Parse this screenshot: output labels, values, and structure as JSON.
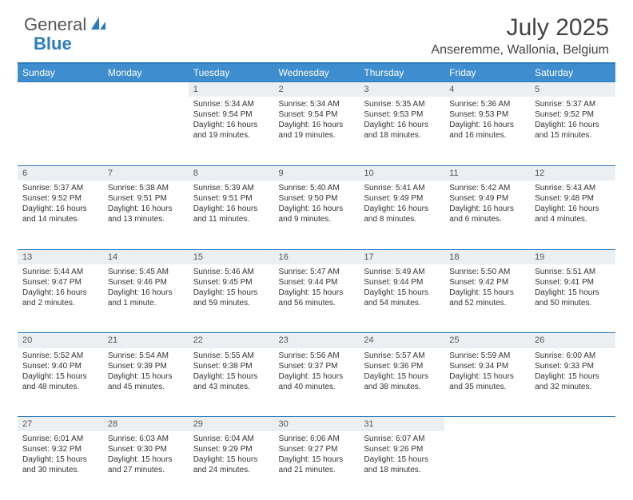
{
  "brand": {
    "part1": "General",
    "part2": "Blue"
  },
  "title": "July 2025",
  "location": "Anseremme, Wallonia, Belgium",
  "colors": {
    "header_bg": "#3d8dcf",
    "rule": "#2b7bbf",
    "daynum_bg": "#eceff2",
    "text": "#333333"
  },
  "weekdays": [
    "Sunday",
    "Monday",
    "Tuesday",
    "Wednesday",
    "Thursday",
    "Friday",
    "Saturday"
  ],
  "weeks": [
    [
      null,
      null,
      {
        "n": "1",
        "sr": "Sunrise: 5:34 AM",
        "ss": "Sunset: 9:54 PM",
        "dl1": "Daylight: 16 hours",
        "dl2": "and 19 minutes."
      },
      {
        "n": "2",
        "sr": "Sunrise: 5:34 AM",
        "ss": "Sunset: 9:54 PM",
        "dl1": "Daylight: 16 hours",
        "dl2": "and 19 minutes."
      },
      {
        "n": "3",
        "sr": "Sunrise: 5:35 AM",
        "ss": "Sunset: 9:53 PM",
        "dl1": "Daylight: 16 hours",
        "dl2": "and 18 minutes."
      },
      {
        "n": "4",
        "sr": "Sunrise: 5:36 AM",
        "ss": "Sunset: 9:53 PM",
        "dl1": "Daylight: 16 hours",
        "dl2": "and 16 minutes."
      },
      {
        "n": "5",
        "sr": "Sunrise: 5:37 AM",
        "ss": "Sunset: 9:52 PM",
        "dl1": "Daylight: 16 hours",
        "dl2": "and 15 minutes."
      }
    ],
    [
      {
        "n": "6",
        "sr": "Sunrise: 5:37 AM",
        "ss": "Sunset: 9:52 PM",
        "dl1": "Daylight: 16 hours",
        "dl2": "and 14 minutes."
      },
      {
        "n": "7",
        "sr": "Sunrise: 5:38 AM",
        "ss": "Sunset: 9:51 PM",
        "dl1": "Daylight: 16 hours",
        "dl2": "and 13 minutes."
      },
      {
        "n": "8",
        "sr": "Sunrise: 5:39 AM",
        "ss": "Sunset: 9:51 PM",
        "dl1": "Daylight: 16 hours",
        "dl2": "and 11 minutes."
      },
      {
        "n": "9",
        "sr": "Sunrise: 5:40 AM",
        "ss": "Sunset: 9:50 PM",
        "dl1": "Daylight: 16 hours",
        "dl2": "and 9 minutes."
      },
      {
        "n": "10",
        "sr": "Sunrise: 5:41 AM",
        "ss": "Sunset: 9:49 PM",
        "dl1": "Daylight: 16 hours",
        "dl2": "and 8 minutes."
      },
      {
        "n": "11",
        "sr": "Sunrise: 5:42 AM",
        "ss": "Sunset: 9:49 PM",
        "dl1": "Daylight: 16 hours",
        "dl2": "and 6 minutes."
      },
      {
        "n": "12",
        "sr": "Sunrise: 5:43 AM",
        "ss": "Sunset: 9:48 PM",
        "dl1": "Daylight: 16 hours",
        "dl2": "and 4 minutes."
      }
    ],
    [
      {
        "n": "13",
        "sr": "Sunrise: 5:44 AM",
        "ss": "Sunset: 9:47 PM",
        "dl1": "Daylight: 16 hours",
        "dl2": "and 2 minutes."
      },
      {
        "n": "14",
        "sr": "Sunrise: 5:45 AM",
        "ss": "Sunset: 9:46 PM",
        "dl1": "Daylight: 16 hours",
        "dl2": "and 1 minute."
      },
      {
        "n": "15",
        "sr": "Sunrise: 5:46 AM",
        "ss": "Sunset: 9:45 PM",
        "dl1": "Daylight: 15 hours",
        "dl2": "and 59 minutes."
      },
      {
        "n": "16",
        "sr": "Sunrise: 5:47 AM",
        "ss": "Sunset: 9:44 PM",
        "dl1": "Daylight: 15 hours",
        "dl2": "and 56 minutes."
      },
      {
        "n": "17",
        "sr": "Sunrise: 5:49 AM",
        "ss": "Sunset: 9:44 PM",
        "dl1": "Daylight: 15 hours",
        "dl2": "and 54 minutes."
      },
      {
        "n": "18",
        "sr": "Sunrise: 5:50 AM",
        "ss": "Sunset: 9:42 PM",
        "dl1": "Daylight: 15 hours",
        "dl2": "and 52 minutes."
      },
      {
        "n": "19",
        "sr": "Sunrise: 5:51 AM",
        "ss": "Sunset: 9:41 PM",
        "dl1": "Daylight: 15 hours",
        "dl2": "and 50 minutes."
      }
    ],
    [
      {
        "n": "20",
        "sr": "Sunrise: 5:52 AM",
        "ss": "Sunset: 9:40 PM",
        "dl1": "Daylight: 15 hours",
        "dl2": "and 48 minutes."
      },
      {
        "n": "21",
        "sr": "Sunrise: 5:54 AM",
        "ss": "Sunset: 9:39 PM",
        "dl1": "Daylight: 15 hours",
        "dl2": "and 45 minutes."
      },
      {
        "n": "22",
        "sr": "Sunrise: 5:55 AM",
        "ss": "Sunset: 9:38 PM",
        "dl1": "Daylight: 15 hours",
        "dl2": "and 43 minutes."
      },
      {
        "n": "23",
        "sr": "Sunrise: 5:56 AM",
        "ss": "Sunset: 9:37 PM",
        "dl1": "Daylight: 15 hours",
        "dl2": "and 40 minutes."
      },
      {
        "n": "24",
        "sr": "Sunrise: 5:57 AM",
        "ss": "Sunset: 9:36 PM",
        "dl1": "Daylight: 15 hours",
        "dl2": "and 38 minutes."
      },
      {
        "n": "25",
        "sr": "Sunrise: 5:59 AM",
        "ss": "Sunset: 9:34 PM",
        "dl1": "Daylight: 15 hours",
        "dl2": "and 35 minutes."
      },
      {
        "n": "26",
        "sr": "Sunrise: 6:00 AM",
        "ss": "Sunset: 9:33 PM",
        "dl1": "Daylight: 15 hours",
        "dl2": "and 32 minutes."
      }
    ],
    [
      {
        "n": "27",
        "sr": "Sunrise: 6:01 AM",
        "ss": "Sunset: 9:32 PM",
        "dl1": "Daylight: 15 hours",
        "dl2": "and 30 minutes."
      },
      {
        "n": "28",
        "sr": "Sunrise: 6:03 AM",
        "ss": "Sunset: 9:30 PM",
        "dl1": "Daylight: 15 hours",
        "dl2": "and 27 minutes."
      },
      {
        "n": "29",
        "sr": "Sunrise: 6:04 AM",
        "ss": "Sunset: 9:29 PM",
        "dl1": "Daylight: 15 hours",
        "dl2": "and 24 minutes."
      },
      {
        "n": "30",
        "sr": "Sunrise: 6:06 AM",
        "ss": "Sunset: 9:27 PM",
        "dl1": "Daylight: 15 hours",
        "dl2": "and 21 minutes."
      },
      {
        "n": "31",
        "sr": "Sunrise: 6:07 AM",
        "ss": "Sunset: 9:26 PM",
        "dl1": "Daylight: 15 hours",
        "dl2": "and 18 minutes."
      },
      null,
      null
    ]
  ]
}
